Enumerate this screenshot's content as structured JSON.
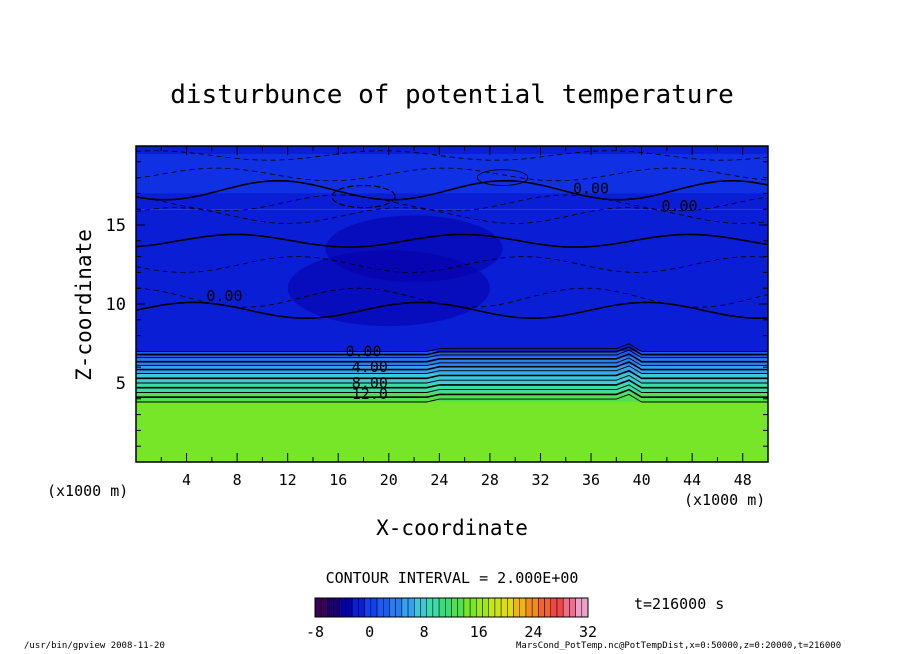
{
  "chart_data": {
    "type": "heatmap",
    "title": "disturbunce of potential temperature",
    "xlabel": "X-coordinate",
    "ylabel": "Z-coordinate",
    "x_unit_left": "(x1000 m)",
    "x_unit_right": "(x1000 m)",
    "xlim": [
      0,
      50
    ],
    "ylim": [
      0,
      20
    ],
    "x_ticks": [
      "4",
      "8",
      "12",
      "16",
      "20",
      "24",
      "28",
      "32",
      "36",
      "40",
      "44",
      "48"
    ],
    "y_ticks": [
      "5",
      "10",
      "15"
    ],
    "contour_labels": [
      {
        "text": "0.00",
        "x": 18,
        "z": 7.0
      },
      {
        "text": "4.00",
        "x": 18.5,
        "z": 6.0
      },
      {
        "text": "8.00",
        "x": 18.5,
        "z": 5.0
      },
      {
        "text": "12.0",
        "x": 18.5,
        "z": 4.3
      },
      {
        "text": "0.00",
        "x": 7,
        "z": 10.5
      },
      {
        "text": "0.00",
        "x": 36,
        "z": 17.3
      },
      {
        "text": "0.00",
        "x": 43,
        "z": 16.2
      }
    ],
    "layers": [
      {
        "z_from": 0,
        "z_to": 3.8,
        "value": 14
      },
      {
        "z_from": 3.8,
        "z_to": 4.4,
        "value": 12
      },
      {
        "z_from": 4.4,
        "z_to": 5.0,
        "value": 10
      },
      {
        "z_from": 5.0,
        "z_to": 5.6,
        "value": 8
      },
      {
        "z_from": 5.6,
        "z_to": 6.1,
        "value": 6
      },
      {
        "z_from": 6.1,
        "z_to": 6.6,
        "value": 4
      },
      {
        "z_from": 6.6,
        "z_to": 7.0,
        "value": 2
      },
      {
        "z_from": 7.0,
        "z_to": 16.0,
        "value": -2
      },
      {
        "z_from": 16.0,
        "z_to": 20.0,
        "value": -1
      }
    ],
    "contour_interval_text": "CONTOUR INTERVAL = 2.000E+00",
    "time_text": "t=216000 s",
    "colorbar": {
      "min": -8,
      "max": 32,
      "tick_labels": [
        "-8",
        "0",
        "8",
        "16",
        "24",
        "32"
      ],
      "colors": [
        "#3a0058",
        "#1b006f",
        "#0600a8",
        "#0a1ed6",
        "#1540f0",
        "#1c5cf4",
        "#2a7cf0",
        "#36a0f0",
        "#3cc8d8",
        "#3cdca8",
        "#3cdc78",
        "#50e050",
        "#78e628",
        "#a0ea14",
        "#c8e614",
        "#e0dc14",
        "#f0b414",
        "#f08c1e",
        "#f06432",
        "#f04646",
        "#f06e8c",
        "#f0a0c8"
      ]
    }
  },
  "footer": {
    "left": "/usr/bin/gpview  2008-11-20",
    "right": "MarsCond_PotTemp.nc@PotTempDist,x=0:50000,z=0:20000,t=216000"
  }
}
